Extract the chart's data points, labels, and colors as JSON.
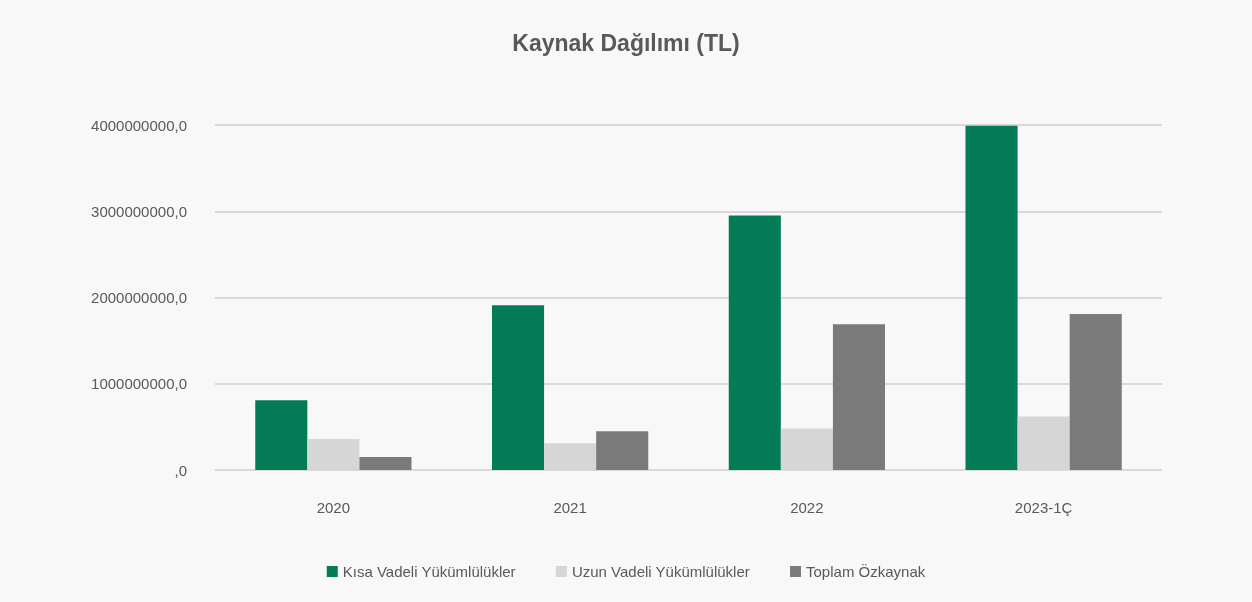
{
  "chart_data": {
    "type": "bar",
    "title": "Kaynak Dağılımı (TL)",
    "categories": [
      "2020",
      "2021",
      "2022",
      "2023-1Ç"
    ],
    "series": [
      {
        "name": "Kısa Vadeli Yükümlülükler",
        "color": "#027b56",
        "values": [
          810000000,
          1910000000,
          2950000000,
          3990000000
        ]
      },
      {
        "name": "Uzun Vadeli Yükümlülükler",
        "color": "#d6d6d6",
        "values": [
          360000000,
          310000000,
          480000000,
          620000000
        ]
      },
      {
        "name": "Toplam Özkaynak",
        "color": "#7a7a7a",
        "values": [
          150000000,
          450000000,
          1690000000,
          1810000000
        ]
      }
    ],
    "ylim": [
      0,
      4000000000
    ],
    "yticks": [
      {
        "value": 0,
        "label": ",0"
      },
      {
        "value": 1000000000,
        "label": "1000000000,0"
      },
      {
        "value": 2000000000,
        "label": "2000000000,0"
      },
      {
        "value": 3000000000,
        "label": "3000000000,0"
      },
      {
        "value": 4000000000,
        "label": "4000000000,0"
      }
    ],
    "grid": "y",
    "legend": "bottom"
  }
}
